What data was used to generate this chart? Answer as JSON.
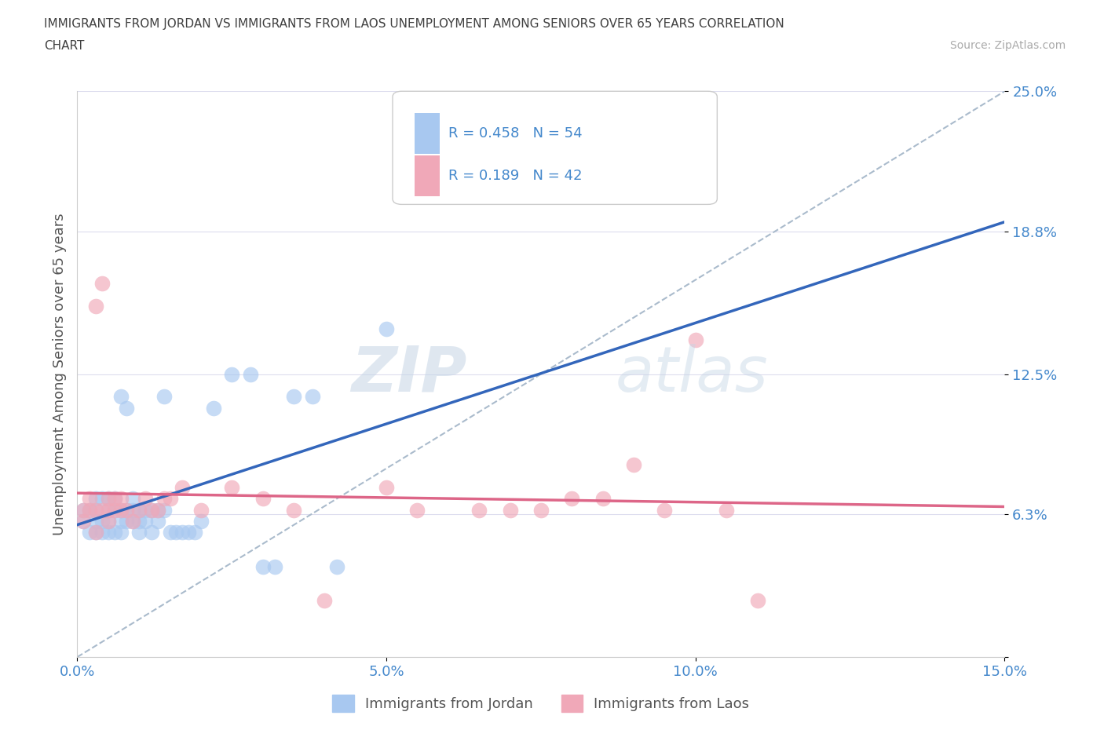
{
  "title_line1": "IMMIGRANTS FROM JORDAN VS IMMIGRANTS FROM LAOS UNEMPLOYMENT AMONG SENIORS OVER 65 YEARS CORRELATION",
  "title_line2": "CHART",
  "source": "Source: ZipAtlas.com",
  "ylabel": "Unemployment Among Seniors over 65 years",
  "xmin": 0.0,
  "xmax": 0.15,
  "ymin": 0.0,
  "ymax": 0.25,
  "yticks": [
    0.0,
    0.063,
    0.125,
    0.188,
    0.25
  ],
  "ytick_labels": [
    "",
    "6.3%",
    "12.5%",
    "18.8%",
    "25.0%"
  ],
  "xticks": [
    0.0,
    0.05,
    0.1,
    0.15
  ],
  "xtick_labels": [
    "0.0%",
    "5.0%",
    "10.0%",
    "15.0%"
  ],
  "color_jordan": "#a8c8f0",
  "color_laos": "#f0a8b8",
  "color_jordan_line": "#3366bb",
  "color_laos_line": "#dd6688",
  "color_trend_dash": "#aabbcc",
  "title_color": "#404040",
  "axis_label_color": "#555555",
  "tick_color": "#4488cc",
  "watermark_zip": "ZIP",
  "watermark_atlas": "atlas",
  "jordan_x": [
    0.001,
    0.001,
    0.002,
    0.002,
    0.003,
    0.003,
    0.003,
    0.003,
    0.004,
    0.004,
    0.004,
    0.005,
    0.005,
    0.005,
    0.005,
    0.006,
    0.006,
    0.006,
    0.007,
    0.007,
    0.007,
    0.007,
    0.008,
    0.008,
    0.008,
    0.009,
    0.009,
    0.009,
    0.01,
    0.01,
    0.01,
    0.011,
    0.011,
    0.012,
    0.012,
    0.013,
    0.013,
    0.014,
    0.014,
    0.015,
    0.016,
    0.017,
    0.018,
    0.019,
    0.02,
    0.022,
    0.025,
    0.028,
    0.03,
    0.032,
    0.035,
    0.038,
    0.042,
    0.05
  ],
  "jordan_y": [
    0.06,
    0.065,
    0.055,
    0.065,
    0.055,
    0.06,
    0.07,
    0.065,
    0.055,
    0.06,
    0.07,
    0.055,
    0.06,
    0.065,
    0.07,
    0.055,
    0.065,
    0.07,
    0.055,
    0.06,
    0.065,
    0.115,
    0.06,
    0.065,
    0.11,
    0.06,
    0.065,
    0.07,
    0.055,
    0.06,
    0.065,
    0.06,
    0.065,
    0.055,
    0.065,
    0.06,
    0.065,
    0.065,
    0.115,
    0.055,
    0.055,
    0.055,
    0.055,
    0.055,
    0.06,
    0.11,
    0.125,
    0.125,
    0.04,
    0.04,
    0.115,
    0.115,
    0.04,
    0.145
  ],
  "laos_x": [
    0.001,
    0.001,
    0.002,
    0.002,
    0.003,
    0.003,
    0.003,
    0.004,
    0.004,
    0.005,
    0.005,
    0.005,
    0.006,
    0.006,
    0.007,
    0.007,
    0.008,
    0.009,
    0.01,
    0.011,
    0.012,
    0.013,
    0.014,
    0.015,
    0.017,
    0.02,
    0.025,
    0.03,
    0.035,
    0.04,
    0.05,
    0.055,
    0.065,
    0.07,
    0.075,
    0.08,
    0.085,
    0.09,
    0.095,
    0.1,
    0.105,
    0.11
  ],
  "laos_y": [
    0.06,
    0.065,
    0.065,
    0.07,
    0.055,
    0.065,
    0.155,
    0.065,
    0.165,
    0.06,
    0.065,
    0.07,
    0.065,
    0.07,
    0.065,
    0.07,
    0.065,
    0.06,
    0.065,
    0.07,
    0.065,
    0.065,
    0.07,
    0.07,
    0.075,
    0.065,
    0.075,
    0.07,
    0.065,
    0.025,
    0.075,
    0.065,
    0.065,
    0.065,
    0.065,
    0.07,
    0.07,
    0.085,
    0.065,
    0.14,
    0.065,
    0.025
  ]
}
